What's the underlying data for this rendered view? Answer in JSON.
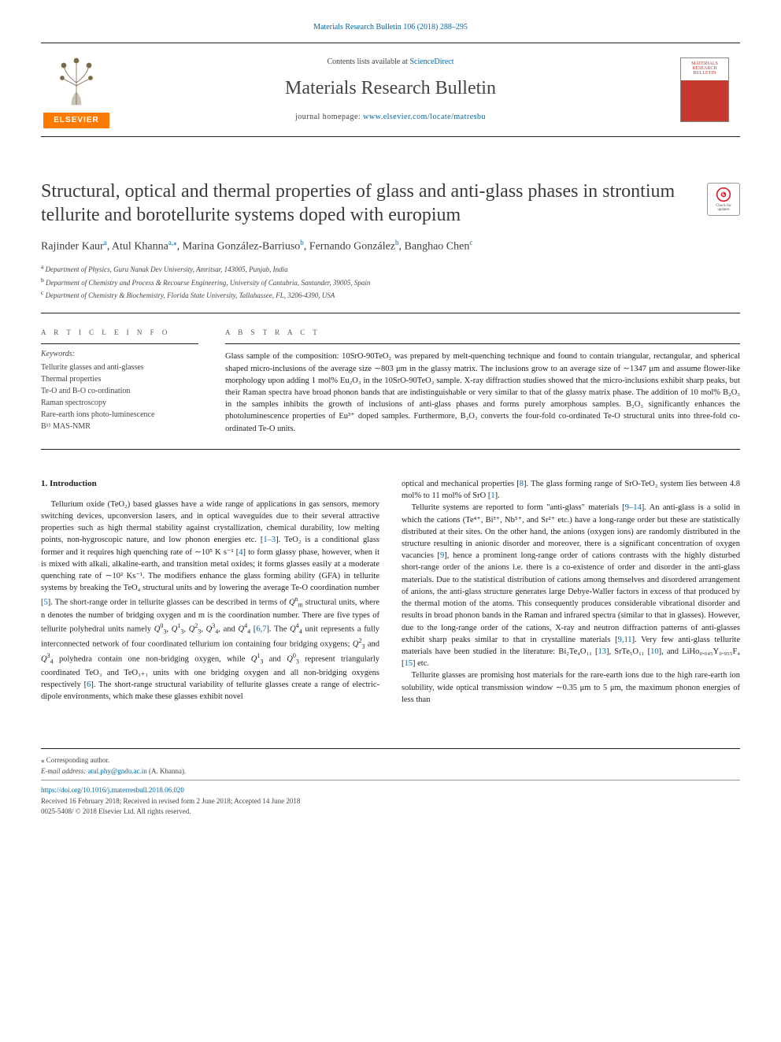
{
  "top_link": {
    "text": "Materials Research Bulletin 106 (2018) 288–295",
    "href": "#"
  },
  "masthead": {
    "contents_prefix": "Contents lists available at ",
    "contents_link": "ScienceDirect",
    "journal_name": "Materials Research Bulletin",
    "homepage_prefix": "journal homepage: ",
    "homepage_link": "www.elsevier.com/locate/matresbu",
    "elsevier_label": "ELSEVIER",
    "cover_text": "MATERIALS RESEARCH BULLETIN"
  },
  "check_badge": {
    "line1": "Check for",
    "line2": "updates"
  },
  "title": "Structural, optical and thermal properties of glass and anti-glass phases in strontium tellurite and borotellurite systems doped with europium",
  "authors_html": "Rajinder Kaur<sup>a</sup>, Atul Khanna<sup>a,</sup><sup>⁎</sup>, Marina González-Barriuso<sup>b</sup>, Fernando González<sup>b</sup>, Banghao Chen<sup>c</sup>",
  "affiliations": [
    "a Department of Physics, Guru Nanak Dev University, Amritsar, 143005, Punjab, India",
    "b Department of Chemistry and Process & Recourse Engineering, University of Cantabria, Santander, 39005, Spain",
    "c Department of Chemistry & Biochemistry, Florida State University, Tallahassee, FL, 3206-4390, USA"
  ],
  "article_info": {
    "head": "A R T I C L E  I N F O",
    "kw_head": "Keywords:",
    "keywords": [
      "Tellurite glasses and anti-glasses",
      "Thermal properties",
      "Te-O and B-O co-ordination",
      "Raman spectroscopy",
      "Rare-earth ions photo-luminescence",
      "B¹¹ MAS-NMR"
    ]
  },
  "abstract": {
    "head": "A B S T R A C T",
    "text": "Glass sample of the composition: 10SrO-90TeO₂ was prepared by melt-quenching technique and found to contain triangular, rectangular, and spherical shaped micro-inclusions of the average size ∼803 μm in the glassy matrix. The inclusions grow to an average size of ∼1347 μm and assume flower-like morphology upon adding 1 mol% Eu₂O₃ in the 10SrO-90TeO₂ sample. X-ray diffraction studies showed that the micro-inclusions exhibit sharp peaks, but their Raman spectra have broad phonon bands that are indistinguishable or very similar to that of the glassy matrix phase. The addition of 10 mol% B₂O₃ in the samples inhibits the growth of inclusions of anti-glass phases and forms purely amorphous samples. B₂O₃ significantly enhances the photoluminescence properties of Eu³⁺ doped samples. Furthermore, B₂O₃ converts the four-fold co-ordinated Te-O structural units into three-fold co-ordinated Te-O units."
  },
  "body": {
    "heading": "1. Introduction",
    "col1_p1": "Tellurium oxide (TeO₂) based glasses have a wide range of applications in gas sensors, memory switching devices, upconversion lasers, and in optical waveguides due to their several attractive properties such as high thermal stability against crystallization, chemical durability, low melting points, non-hygroscopic nature, and low phonon energies etc. [1–3]. TeO₂ is a conditional glass former and it requires high quenching rate of ∼10⁵ K s⁻¹ [4] to form glassy phase, however, when it is mixed with alkali, alkaline-earth, and transition metal oxides; it forms glasses easily at a moderate quenching rate of ∼10² Ks⁻¹. The modifiers enhance the glass forming ability (GFA) in tellurite systems by breaking the TeO₄ structural units and by lowering the average Te-O coordination number [5]. The short-range order in tellurite glasses can be described in terms of Qₘⁿ structural units, where n denotes the number of bridging oxygen and m is the coordination number. There are five types of tellurite polyhedral units namely Q₃⁰, Q₃¹, Q₃², Q₄³, and Q₄⁴ [6,7]. The Q₄⁴ unit represents a fully interconnected network of four coordinated tellurium ion containing four bridging oxygens; Q₃² and Q₄³ polyhedra contain one non-bridging oxygen, while Q₃¹ and Q₃⁰ represent triangularly coordinated TeO₃ and TeO₃₊₁ units with one bridging oxygen and all non-bridging oxygens respectively [6]. The short-range structural variability of tellurite glasses create a range of electric-dipole environments, which make these glasses exhibit novel",
    "col2_p1": "optical and mechanical properties [8]. The glass forming range of SrO-TeO₂ system lies between 4.8 mol% to 11 mol% of SrO [1].",
    "col2_p2": "Tellurite systems are reported to form \"anti-glass\" materials [9–14]. An anti-glass is a solid in which the cations (Te⁴⁺, Bi³⁺, Nb⁵⁺, and Sr²⁺ etc.) have a long-range order but these are statistically distributed at their sites. On the other hand, the anions (oxygen ions) are randomly distributed in the structure resulting in anionic disorder and moreover, there is a significant concentration of oxygen vacancies [9], hence a prominent long-range order of cations contrasts with the highly disturbed short-range order of the anions i.e. there is a co-existence of order and disorder in the anti-glass materials. Due to the statistical distribution of cations among themselves and disordered arrangement of anions, the anti-glass structure generates large Debye-Waller factors in excess of that produced by the thermal motion of the atoms. This consequently produces considerable vibrational disorder and results in broad phonon bands in the Raman and infrared spectra (similar to that in glasses). However, due to the long-range order of the cations, X-ray and neutron diffraction patterns of anti-glasses exhibit sharp peaks similar to that in crystalline materials [9,11]. Very few anti-glass tellurite materials have been studied in the literature: Bi₂Te₄O₁₁ [13], SrTe₅O₁₁ [10], and LiHo₀.₀₄₅Y₀.₉₅₅F₄ [15] etc.",
    "col2_p3": "Tellurite glasses are promising host materials for the rare-earth ions due to the high rare-earth ion solubility, wide optical transmission window ∼0.35 μm to 5 μm, the maximum phonon energies of less than"
  },
  "footer": {
    "corr": "⁎ Corresponding author.",
    "email_label": "E-mail address: ",
    "email": "atul.phy@gndu.ac.in",
    "email_suffix": " (A. Khanna).",
    "doi": "https://doi.org/10.1016/j.materresbull.2018.06.020",
    "received": "Received 16 February 2018; Received in revised form 2 June 2018; Accepted 14 June 2018",
    "copyright": "0025-5408/ © 2018 Elsevier Ltd. All rights reserved."
  },
  "colors": {
    "link": "#0066a6",
    "elsevier_orange": "#ff7b00",
    "cover_red": "#c43a2e",
    "text": "#222222",
    "muted": "#444444",
    "rule": "#222222"
  }
}
